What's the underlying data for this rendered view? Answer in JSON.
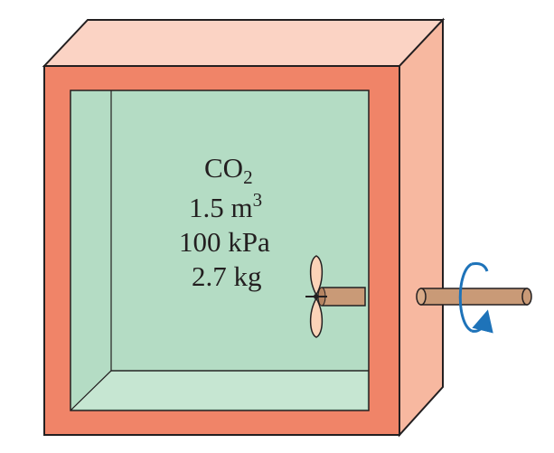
{
  "gas": {
    "formula_base": "CO",
    "formula_subscript": "2",
    "volume_value": "1.5 m",
    "volume_superscript": "3",
    "pressure": "100 kPa",
    "mass": "2.7 kg"
  },
  "colors": {
    "outline": "#231f20",
    "wall_front": "#f08468",
    "wall_side": "#f7b8a0",
    "wall_top": "#fbd3c4",
    "gas_fill": "#b4dcc4",
    "gas_edge": "#c6e6d2",
    "shaft": "#c99a77",
    "propeller": "#fbd3b8",
    "rotation_arrow": "#1e73b9"
  },
  "icons": {
    "propeller": "propeller-icon",
    "rotation": "rotation-arrow-icon"
  }
}
